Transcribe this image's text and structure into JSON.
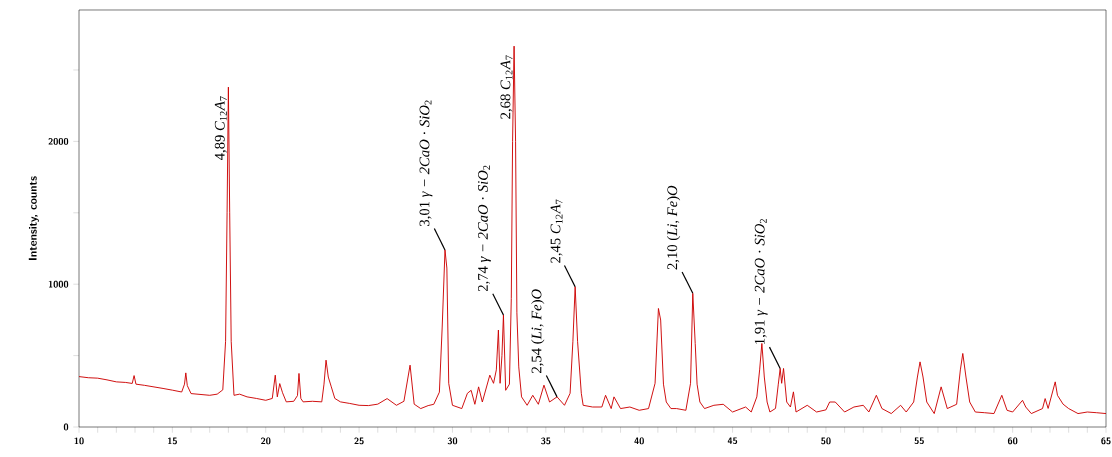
{
  "chart_data": {
    "type": "line",
    "ylabel": "Intensity, counts",
    "color": "#cc0000",
    "marker": "none",
    "grid": false,
    "xlim": [
      10,
      65
    ],
    "ylim": [
      0,
      2920
    ],
    "xticks": [
      10,
      {
        "value": 11,
        "label": null
      },
      {
        "value": 12,
        "label": null
      },
      {
        "value": 13,
        "label": null
      },
      {
        "value": 14,
        "label": null
      },
      15,
      {
        "value": 16,
        "label": null
      },
      {
        "value": 17,
        "label": null
      },
      {
        "value": 18,
        "label": null
      },
      {
        "value": 19,
        "label": null
      },
      20,
      {
        "value": 21,
        "label": null
      },
      {
        "value": 22,
        "label": null
      },
      {
        "value": 23,
        "label": null
      },
      {
        "value": 24,
        "label": null
      },
      25,
      {
        "value": 26,
        "label": null
      },
      {
        "value": 27,
        "label": null
      },
      {
        "value": 28,
        "label": null
      },
      {
        "value": 29,
        "label": null
      },
      30,
      {
        "value": 31,
        "label": null
      },
      {
        "value": 32,
        "label": null
      },
      {
        "value": 33,
        "label": null
      },
      {
        "value": 34,
        "label": null
      },
      35,
      {
        "value": 36,
        "label": null
      },
      {
        "value": 37,
        "label": null
      },
      {
        "value": 38,
        "label": null
      },
      {
        "value": 39,
        "label": null
      },
      40,
      {
        "value": 41,
        "label": null
      },
      {
        "value": 42,
        "label": null
      },
      {
        "value": 43,
        "label": null
      },
      {
        "value": 44,
        "label": null
      },
      45,
      {
        "value": 46,
        "label": null
      },
      {
        "value": 47,
        "label": null
      },
      {
        "value": 48,
        "label": null
      },
      {
        "value": 49,
        "label": null
      },
      50,
      {
        "value": 51,
        "label": null
      },
      {
        "value": 52,
        "label": null
      },
      {
        "value": 53,
        "label": null
      },
      {
        "value": 54,
        "label": null
      },
      55,
      {
        "value": 56,
        "label": null
      },
      {
        "value": 57,
        "label": null
      },
      {
        "value": 58,
        "label": null
      },
      {
        "value": 59,
        "label": null
      },
      60,
      {
        "value": 61,
        "label": null
      },
      {
        "value": 62,
        "label": null
      },
      {
        "value": 63,
        "label": null
      },
      {
        "value": 64,
        "label": null
      },
      65
    ],
    "yticks": [
      0,
      {
        "value": 500,
        "label": null
      },
      1000,
      {
        "value": 1500,
        "label": null
      },
      2000,
      {
        "value": 2500,
        "label": null
      }
    ],
    "x": [
      10,
      10.5,
      11,
      11.5,
      12,
      12.5,
      12.85,
      12.95,
      13.05,
      13.5,
      14,
      14.5,
      15,
      15.5,
      15.65,
      15.72,
      15.8,
      16,
      16.5,
      17,
      17.4,
      17.7,
      17.85,
      17.93,
      18.0,
      18.07,
      18.15,
      18.3,
      18.6,
      19,
      19.5,
      20,
      20.35,
      20.51,
      20.62,
      20.75,
      20.9,
      21.1,
      21.5,
      21.7,
      21.78,
      21.88,
      22,
      22.5,
      23,
      23.12,
      23.23,
      23.35,
      23.5,
      23.7,
      24,
      24.5,
      25,
      25.5,
      26,
      26.5,
      27,
      27.4,
      27.73,
      27.95,
      28.3,
      28.7,
      29,
      29.3,
      29.45,
      29.6,
      29.7,
      29.8,
      30,
      30.5,
      30.8,
      31,
      31.2,
      31.4,
      31.6,
      32,
      32.2,
      32.35,
      32.46,
      32.55,
      32.65,
      32.73,
      32.85,
      33.05,
      33.15,
      33.22,
      33.3,
      33.38,
      33.45,
      33.55,
      33.7,
      34,
      34.3,
      34.6,
      34.9,
      35.2,
      35.6,
      36,
      36.3,
      36.45,
      36.57,
      36.7,
      36.9,
      37,
      37.5,
      38,
      38.2,
      38.5,
      38.65,
      39,
      39.5,
      40,
      40.5,
      40.85,
      41.03,
      41.15,
      41.3,
      41.45,
      41.7,
      42,
      42.5,
      42.75,
      42.87,
      43,
      43.1,
      43.25,
      43.5,
      44,
      44.5,
      45,
      45.7,
      46,
      46.3,
      46.45,
      46.57,
      46.7,
      46.85,
      47,
      47.3,
      47.45,
      47.55,
      47.63,
      47.73,
      47.9,
      48.1,
      48.26,
      48.4,
      49,
      49.5,
      50,
      50.2,
      50.5,
      51,
      51.5,
      52,
      52.3,
      52.7,
      53,
      53.5,
      54,
      54.3,
      54.7,
      54.9,
      55.04,
      55.2,
      55.4,
      55.8,
      56.17,
      56.5,
      57,
      57.2,
      57.33,
      57.5,
      57.7,
      58,
      58.5,
      59,
      59.42,
      59.7,
      60,
      60.53,
      60.7,
      61,
      61.6,
      61.74,
      61.9,
      62.28,
      62.4,
      62.7,
      63,
      63.5,
      64,
      64.5,
      65
    ],
    "values": [
      353,
      345,
      342,
      330,
      316,
      312,
      305,
      360,
      300,
      292,
      281,
      270,
      258,
      245,
      300,
      379,
      290,
      234,
      228,
      222,
      230,
      260,
      600,
      1500,
      2380,
      1500,
      600,
      222,
      230,
      211,
      200,
      187,
      200,
      363,
      211,
      304,
      240,
      176,
      180,
      220,
      375,
      200,
      176,
      180,
      176,
      300,
      468,
      350,
      286,
      200,
      176,
      165,
      152,
      150,
      160,
      199,
      152,
      180,
      433,
      160,
      129,
      150,
      159,
      244,
      700,
      1240,
      1113,
      306,
      152,
      129,
      236,
      257,
      159,
      281,
      175,
      363,
      306,
      400,
      679,
      306,
      500,
      784,
      257,
      300,
      900,
      2000,
      2667,
      2000,
      800,
      421,
      211,
      152,
      222,
      159,
      293,
      175,
      211,
      152,
      236,
      600,
      982,
      600,
      236,
      152,
      140,
      140,
      222,
      129,
      211,
      129,
      140,
      117,
      129,
      306,
      830,
      749,
      300,
      175,
      129,
      129,
      117,
      306,
      936,
      585,
      300,
      175,
      129,
      152,
      159,
      105,
      140,
      105,
      211,
      400,
      585,
      350,
      175,
      105,
      130,
      300,
      410,
      306,
      410,
      175,
      140,
      246,
      105,
      152,
      105,
      120,
      175,
      175,
      105,
      140,
      152,
      105,
      222,
      129,
      94,
      152,
      105,
      175,
      350,
      456,
      350,
      175,
      94,
      281,
      129,
      159,
      400,
      515,
      350,
      175,
      105,
      100,
      94,
      222,
      117,
      105,
      187,
      140,
      94,
      129,
      199,
      130,
      316,
      222,
      160,
      129,
      94,
      105,
      100,
      94
    ],
    "annotations": [
      {
        "text": "4,89   *C*$_{12}$*A*$_{7}$",
        "x": 18.0,
        "y": 2380
      },
      {
        "text": "3,01   *γ − 2CaO* · *SiO*$_{2}$",
        "x": 29.6,
        "y": 1240
      },
      {
        "text": "2,74   *γ − 2CaO* · *SiO*$_{2}$",
        "x": 32.73,
        "y": 784
      },
      {
        "text": "2,68   *C*$_{12}$*A*$_{7}$",
        "x": 33.3,
        "y": 2667
      },
      {
        "text": "2,54   (*Li*, *Fe*)*O*",
        "x": 35.6,
        "y": 211
      },
      {
        "text": "2,45   *C*$_{12}$*A*$_{7}$",
        "x": 36.57,
        "y": 982
      },
      {
        "text": "2,10   (*Li*, *Fe*)*O*",
        "x": 42.87,
        "y": 936
      },
      {
        "text": "1,91   *γ − 2CaO* · *SiO*$_{2}$",
        "x": 47.55,
        "y": 410
      }
    ]
  }
}
